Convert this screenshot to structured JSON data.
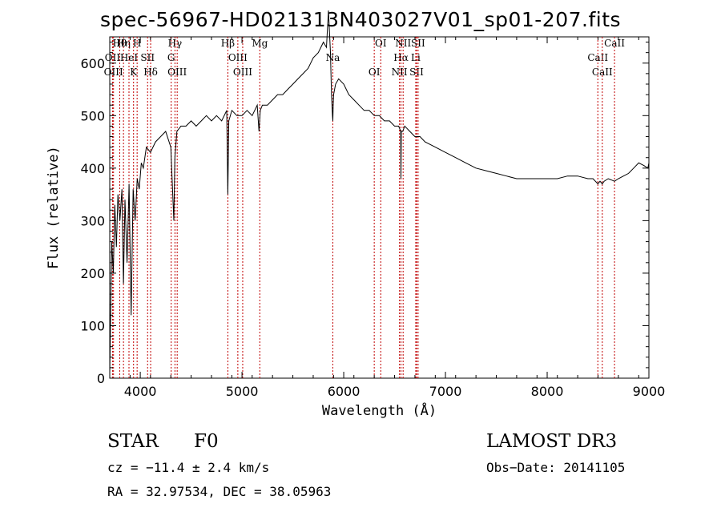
{
  "chart_data": {
    "type": "line",
    "title": "spec-56967-HD021313N403027V01_sp01-207.fits",
    "xlabel": "Wavelength (Å)",
    "ylabel": "Flux (relative)",
    "xlim": [
      3700,
      9000
    ],
    "ylim": [
      0,
      650
    ],
    "xticks": [
      4000,
      5000,
      6000,
      7000,
      8000,
      9000
    ],
    "yticks": [
      0,
      100,
      200,
      300,
      400,
      500,
      600
    ],
    "xtick_labels": [
      "4000",
      "5000",
      "6000",
      "7000",
      "8000",
      "9000"
    ],
    "ytick_labels": [
      "0",
      "100",
      "200",
      "300",
      "400",
      "500",
      "600"
    ],
    "series": [
      {
        "name": "spectrum",
        "x": [
          3700,
          3720,
          3735,
          3750,
          3765,
          3780,
          3800,
          3820,
          3835,
          3850,
          3870,
          3890,
          3910,
          3930,
          3950,
          3970,
          3990,
          4010,
          4030,
          4060,
          4100,
          4150,
          4200,
          4250,
          4300,
          4330,
          4340,
          4360,
          4400,
          4450,
          4500,
          4550,
          4600,
          4650,
          4700,
          4750,
          4800,
          4850,
          4861,
          4870,
          4900,
          4950,
          5000,
          5050,
          5100,
          5150,
          5167,
          5180,
          5200,
          5250,
          5300,
          5350,
          5400,
          5450,
          5500,
          5550,
          5600,
          5650,
          5700,
          5750,
          5800,
          5830,
          5850,
          5870,
          5880,
          5889,
          5893,
          5896,
          5900,
          5920,
          5950,
          6000,
          6050,
          6100,
          6150,
          6200,
          6250,
          6300,
          6350,
          6400,
          6450,
          6500,
          6540,
          6560,
          6563,
          6566,
          6580,
          6600,
          6650,
          6700,
          6750,
          6800,
          6900,
          7000,
          7100,
          7200,
          7300,
          7400,
          7500,
          7600,
          7700,
          7800,
          7900,
          8000,
          8100,
          8200,
          8300,
          8400,
          8450,
          8498,
          8520,
          8542,
          8560,
          8600,
          8662,
          8700,
          8750,
          8800,
          8850,
          8900,
          8950,
          8990,
          9000
        ],
        "y": [
          10,
          260,
          200,
          330,
          250,
          350,
          300,
          360,
          180,
          340,
          220,
          370,
          120,
          360,
          300,
          380,
          360,
          410,
          400,
          440,
          430,
          450,
          460,
          470,
          440,
          300,
          420,
          470,
          480,
          480,
          490,
          480,
          490,
          500,
          490,
          500,
          490,
          510,
          350,
          490,
          510,
          500,
          500,
          510,
          500,
          520,
          470,
          510,
          520,
          520,
          530,
          540,
          540,
          550,
          560,
          570,
          580,
          590,
          610,
          620,
          640,
          630,
          700,
          620,
          540,
          500,
          490,
          520,
          540,
          560,
          570,
          560,
          540,
          530,
          520,
          510,
          510,
          500,
          500,
          490,
          490,
          480,
          480,
          470,
          380,
          470,
          470,
          480,
          470,
          460,
          460,
          450,
          440,
          430,
          420,
          410,
          400,
          395,
          390,
          385,
          380,
          380,
          380,
          380,
          380,
          385,
          385,
          380,
          380,
          370,
          375,
          370,
          375,
          380,
          375,
          380,
          385,
          390,
          400,
          410,
          405,
          400,
          410
        ]
      }
    ],
    "line_markers": [
      {
        "label": "Hθ",
        "x": 3798
      },
      {
        "label": "OII",
        "x": 3727
      },
      {
        "label": "OIII",
        "x": 3737
      },
      {
        "label": "Hη",
        "x": 3835
      },
      {
        "label": "HeI",
        "x": 3889
      },
      {
        "label": "K",
        "x": 3934
      },
      {
        "label": "H",
        "x": 3969
      },
      {
        "label": "SII",
        "x": 4072
      },
      {
        "label": "Hδ",
        "x": 4102
      },
      {
        "label": "Hγ",
        "x": 4341
      },
      {
        "label": "G",
        "x": 4304
      },
      {
        "label": "OIII",
        "x": 4363
      },
      {
        "label": "Hβ",
        "x": 4861
      },
      {
        "label": "OIII",
        "x": 4959
      },
      {
        "label": "OIII",
        "x": 5007
      },
      {
        "label": "Mg",
        "x": 5175
      },
      {
        "label": "Na",
        "x": 5893
      },
      {
        "label": "OI",
        "x": 6300
      },
      {
        "label": "OI",
        "x": 6364
      },
      {
        "label": "Hα",
        "x": 6563
      },
      {
        "label": "NII",
        "x": 6548
      },
      {
        "label": "NII",
        "x": 6584
      },
      {
        "label": "Li",
        "x": 6708
      },
      {
        "label": "SII",
        "x": 6716
      },
      {
        "label": "SII",
        "x": 6731
      },
      {
        "label": "CaII",
        "x": 8498
      },
      {
        "label": "CaII",
        "x": 8542
      },
      {
        "label": "CaII",
        "x": 8662
      }
    ]
  },
  "footer": {
    "object_class": "STAR",
    "subclass": "F0",
    "survey": "LAMOST DR3",
    "cz": "cz = −11.4 ± 2.4 km/s",
    "obs_date": "Obs−Date: 20141105",
    "coords": "RA =  32.97534, DEC =  38.05963"
  },
  "colors": {
    "line": "#000000",
    "marker": "#c00000"
  }
}
